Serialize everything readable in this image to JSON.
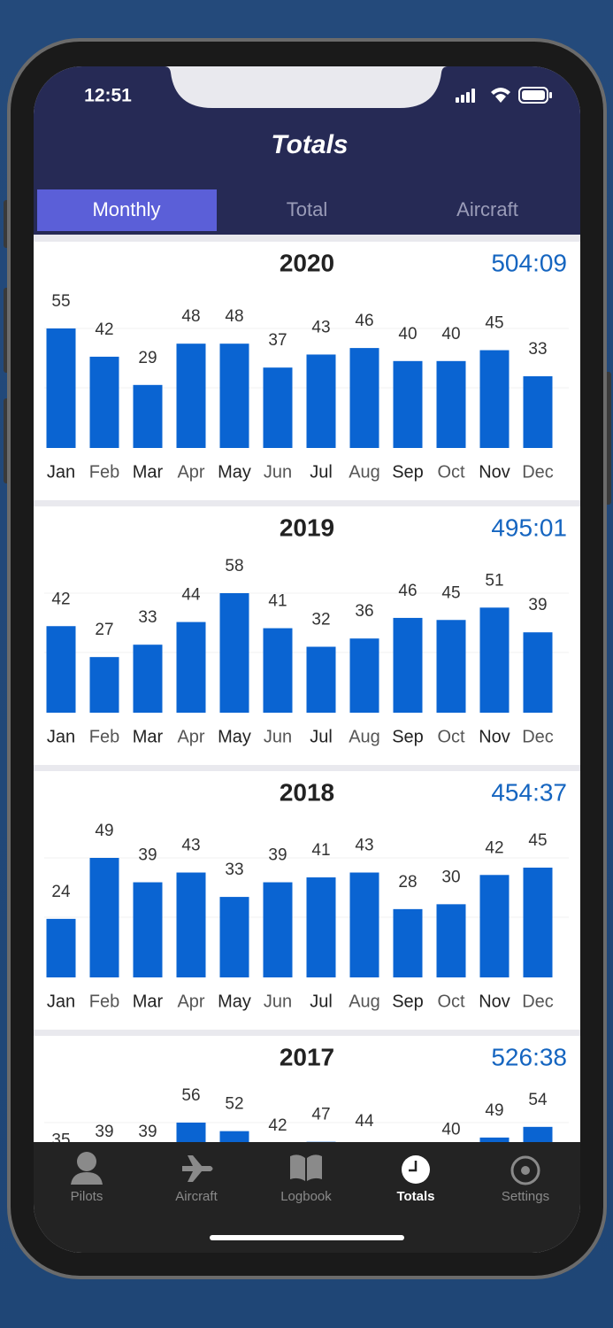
{
  "status_bar": {
    "time": "12:51"
  },
  "header": {
    "title": "Totals"
  },
  "tabs": [
    "Monthly",
    "Total",
    "Aircraft"
  ],
  "chart_data": [
    {
      "type": "bar",
      "title": "2020",
      "total": "504:09",
      "color": "#0a64d2",
      "categories": [
        "Jan",
        "Feb",
        "Mar",
        "Apr",
        "May",
        "Jun",
        "Jul",
        "Aug",
        "Sep",
        "Oct",
        "Nov",
        "Dec"
      ],
      "values": [
        55,
        42,
        29,
        48,
        48,
        37,
        43,
        46,
        40,
        40,
        45,
        33
      ]
    },
    {
      "type": "bar",
      "title": "2019",
      "total": "495:01",
      "color": "#0a64d2",
      "categories": [
        "Jan",
        "Feb",
        "Mar",
        "Apr",
        "May",
        "Jun",
        "Jul",
        "Aug",
        "Sep",
        "Oct",
        "Nov",
        "Dec"
      ],
      "values": [
        42,
        27,
        33,
        44,
        58,
        41,
        32,
        36,
        46,
        45,
        51,
        39
      ]
    },
    {
      "type": "bar",
      "title": "2018",
      "total": "454:37",
      "color": "#0a64d2",
      "categories": [
        "Jan",
        "Feb",
        "Mar",
        "Apr",
        "May",
        "Jun",
        "Jul",
        "Aug",
        "Sep",
        "Oct",
        "Nov",
        "Dec"
      ],
      "values": [
        24,
        49,
        39,
        43,
        33,
        39,
        41,
        43,
        28,
        30,
        42,
        45
      ]
    },
    {
      "type": "bar",
      "title": "2017",
      "total": "526:38",
      "color": "#0a64d2",
      "values": [
        35,
        39,
        39,
        56,
        52,
        42,
        47,
        44,
        null,
        40,
        49,
        54
      ]
    }
  ],
  "tab_bar": [
    "Pilots",
    "Aircraft",
    "Logbook",
    "Totals",
    "Settings"
  ]
}
